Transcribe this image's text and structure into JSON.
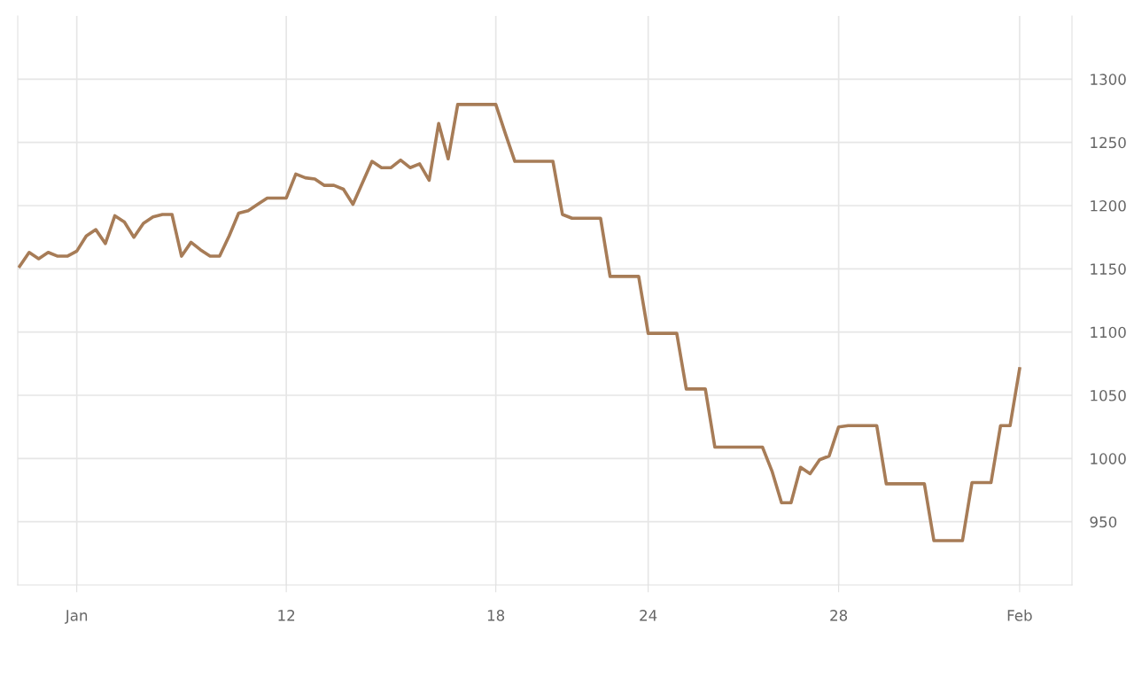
{
  "chart_data": {
    "type": "line",
    "categories": [
      null,
      null,
      null,
      null,
      null,
      null,
      "Jan",
      null,
      null,
      null,
      null,
      null,
      null,
      null,
      null,
      null,
      null,
      null,
      null,
      null,
      null,
      null,
      null,
      null,
      null,
      null,
      null,
      null,
      "12",
      null,
      null,
      null,
      null,
      null,
      null,
      null,
      null,
      null,
      null,
      null,
      null,
      null,
      null,
      null,
      null,
      null,
      null,
      null,
      null,
      null,
      "18",
      null,
      null,
      null,
      null,
      null,
      null,
      null,
      null,
      null,
      null,
      null,
      null,
      null,
      null,
      null,
      "24",
      null,
      null,
      null,
      null,
      null,
      null,
      null,
      null,
      null,
      null,
      null,
      null,
      null,
      null,
      null,
      null,
      null,
      null,
      null,
      "28",
      null,
      null,
      null,
      null,
      null,
      null,
      null,
      null,
      null,
      null,
      null,
      null,
      null,
      null,
      null,
      null,
      null,
      null,
      "Feb"
    ],
    "series": [
      {
        "color": "#a77c57",
        "values": [
          1152,
          1163,
          1158,
          1163,
          1160,
          1160,
          1164,
          1176,
          1181,
          1170,
          1192,
          1187,
          1175,
          1186,
          1191,
          1193,
          1193,
          1160,
          1171,
          1165,
          1160,
          1160,
          1176,
          1194,
          1196,
          1201,
          1206,
          1206,
          1206,
          1225,
          1222,
          1221,
          1216,
          1216,
          1213,
          1201,
          1218,
          1235,
          1230,
          1230,
          1236,
          1230,
          1233,
          1220,
          1265,
          1237,
          1280,
          1280,
          1280,
          1280,
          1280,
          1257,
          1235,
          1235,
          1235,
          1235,
          1235,
          1193,
          1190,
          1190,
          1190,
          1190,
          1144,
          1144,
          1144,
          1144,
          1099,
          1099,
          1099,
          1099,
          1055,
          1055,
          1055,
          1009,
          1009,
          1009,
          1009,
          1009,
          1009,
          990,
          965,
          965,
          993,
          988,
          999,
          1002,
          1025,
          1026,
          1026,
          1026,
          1026,
          980,
          980,
          980,
          980,
          980,
          935,
          935,
          935,
          935,
          981,
          981,
          981,
          1026,
          1026,
          1071
        ]
      }
    ],
    "ylim": [
      900,
      1350
    ],
    "yticks": [
      950,
      1000,
      1050,
      1100,
      1150,
      1200,
      1250,
      1300
    ],
    "grid": true,
    "marker": "none",
    "line_style": "solid"
  }
}
